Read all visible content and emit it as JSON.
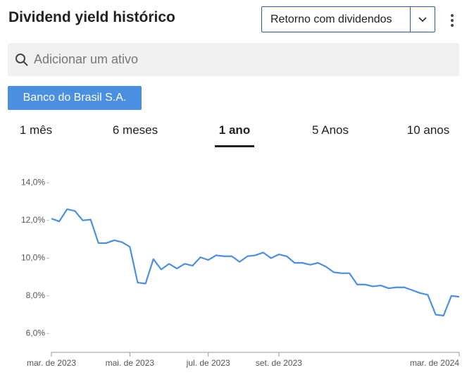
{
  "header": {
    "title": "Dividend yield histórico",
    "dropdown": "Retorno com dividendos"
  },
  "search": {
    "placeholder": "Adicionar um ativo"
  },
  "chip": "Banco do Brasil S.A.",
  "tabs": [
    "1 mês",
    "6 meses",
    "1 ano",
    "5 Anos",
    "10 anos"
  ],
  "active_tab": 2,
  "chart_data": {
    "type": "line",
    "color": "#4a8fe0",
    "categories": [
      "mar. de 2023",
      null,
      null,
      null,
      null,
      null,
      null,
      null,
      null,
      null,
      "mai. de 2023",
      null,
      null,
      null,
      null,
      null,
      null,
      null,
      null,
      null,
      "jul. de 2023",
      null,
      null,
      null,
      null,
      null,
      null,
      null,
      null,
      "set. de 2023",
      null,
      null,
      null,
      null,
      null,
      null,
      null,
      null,
      null,
      null,
      null,
      null,
      null,
      null,
      null,
      null,
      null,
      null,
      null,
      null,
      null,
      null,
      "mar. de 2024"
    ],
    "values": [
      12.1,
      11.95,
      12.6,
      12.5,
      12.0,
      12.05,
      10.8,
      10.8,
      10.95,
      10.85,
      10.6,
      8.7,
      8.65,
      9.95,
      9.4,
      9.7,
      9.45,
      9.7,
      9.6,
      10.05,
      9.9,
      10.15,
      10.1,
      10.1,
      9.8,
      10.1,
      10.15,
      10.3,
      10.0,
      10.2,
      10.1,
      9.75,
      9.75,
      9.65,
      9.75,
      9.55,
      9.25,
      9.2,
      9.2,
      8.6,
      8.6,
      8.5,
      8.55,
      8.4,
      8.45,
      8.45,
      8.3,
      8.15,
      8.05,
      7.0,
      6.95,
      8.0,
      7.95
    ],
    "ylim": [
      5,
      14.5
    ],
    "yticks": [
      {
        "value": 6,
        "label": "6,0%"
      },
      {
        "value": 8,
        "label": "8,0%"
      },
      {
        "value": 10,
        "label": "10,0%"
      },
      {
        "value": 12,
        "label": "12,0%"
      },
      {
        "value": 14,
        "label": "14,0%"
      }
    ]
  }
}
